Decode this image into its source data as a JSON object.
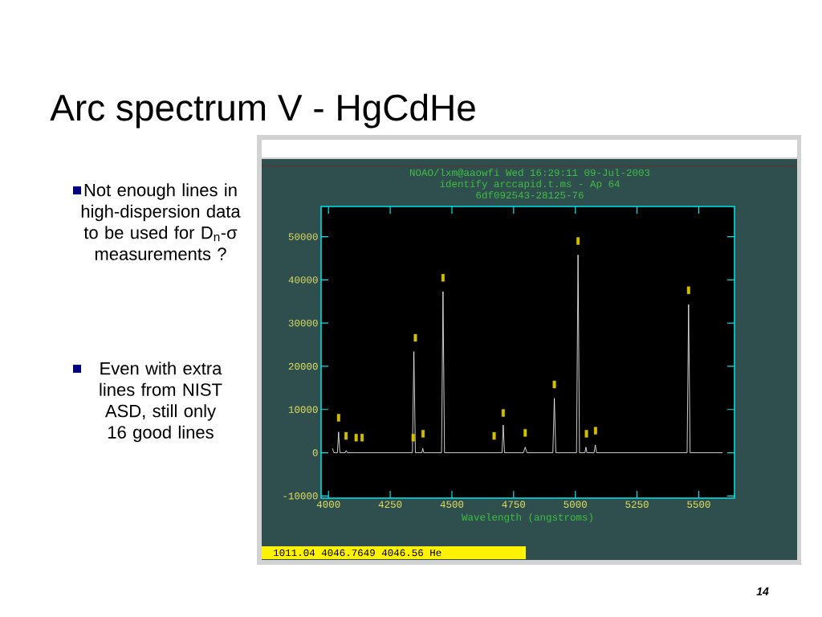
{
  "chart_data": {
    "type": "line",
    "title": "Arc spectrum V - HgCdHe",
    "annotations": [
      "NOAO/lxm@aaowfi Wed 16:29:11 09-Jul-2003",
      "identify arccapid.t.ms - Ap 64",
      "6df092543-28125-76",
      "Not enough lines in high-dispersion data to be used for D$_{n}$-σ measurements ?",
      "Even with extra lines from NIST ASD, still only 16 good lines",
      "1011.04   4046.7649      4046.56 He",
      "14"
    ],
    "xlabel": "Wavelength (angstroms)",
    "xlim": [
      3970,
      5645
    ],
    "xticks": [
      4000,
      4250,
      4500,
      4750,
      5000,
      5250,
      5500
    ],
    "ylim": [
      -10500,
      57000
    ],
    "yticks": [
      -10000,
      0,
      10000,
      20000,
      30000,
      40000,
      50000
    ],
    "series": [
      {
        "color": "#ffffff",
        "x": [
          4016,
          4022,
          4036,
          4041,
          4046,
          4068,
          4072,
          4076,
          4340,
          4346,
          4352,
          4378,
          4382,
          4386,
          4458,
          4464,
          4470,
          4703,
          4708,
          4713,
          4790,
          4797,
          4804,
          4909,
          4915,
          4921,
          5005,
          5011,
          5017,
          5039,
          5043,
          5047,
          5076,
          5081,
          5086,
          5453,
          5459,
          5465,
          5597
        ],
        "values": [
          1000,
          0,
          0,
          4800,
          0,
          0,
          500,
          0,
          0,
          23400,
          0,
          0,
          1000,
          0,
          0,
          37300,
          0,
          0,
          6400,
          0,
          0,
          1300,
          0,
          0,
          12600,
          0,
          0,
          45800,
          0,
          0,
          1300,
          0,
          0,
          1800,
          0,
          0,
          34300,
          0,
          0
        ]
      },
      {
        "type": "scatter",
        "color": "#d4c000",
        "x": [
          4041,
          4071,
          4112,
          4136,
          4343,
          4352,
          4383,
          4464,
          4671,
          4708,
          4797,
          4915,
          5011,
          5045,
          5082,
          5459
        ],
        "values": [
          8100,
          3900,
          3500,
          3500,
          3500,
          26600,
          4400,
          40500,
          3900,
          9200,
          4600,
          15800,
          49000,
          4400,
          5100,
          37600
        ]
      }
    ]
  }
}
